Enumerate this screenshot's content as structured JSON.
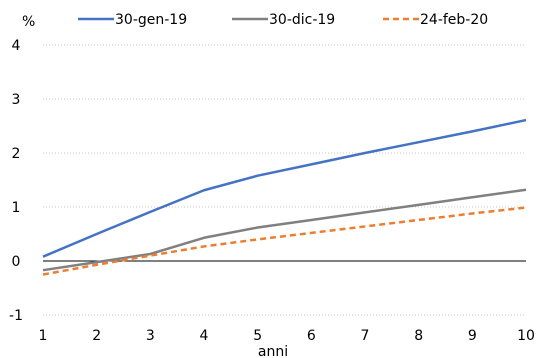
{
  "chart_data": {
    "type": "line",
    "ylabel": "%",
    "xlabel": "anni",
    "x": [
      1,
      2,
      3,
      4,
      5,
      6,
      7,
      8,
      9,
      10
    ],
    "ylim": [
      -1,
      4
    ],
    "xlim": [
      1,
      10
    ],
    "y_ticks": [
      "-1",
      "0",
      "1",
      "2",
      "3",
      "4"
    ],
    "x_ticks": [
      "1",
      "2",
      "3",
      "4",
      "5",
      "6",
      "7",
      "8",
      "9",
      "10"
    ],
    "grid": "horizontal dotted",
    "legend": "top",
    "series": [
      {
        "name": "30-gen-19",
        "color": "#4472C4",
        "dash": "solid",
        "values": [
          0.08,
          0.5,
          0.91,
          1.31,
          1.58,
          1.79,
          2.0,
          2.2,
          2.4,
          2.61
        ]
      },
      {
        "name": "30-dic-19",
        "color": "#808080",
        "dash": "solid",
        "values": [
          -0.17,
          -0.02,
          0.13,
          0.43,
          0.62,
          0.76,
          0.9,
          1.04,
          1.18,
          1.32
        ]
      },
      {
        "name": "24-feb-20",
        "color": "#ED7D31",
        "dash": "dashed",
        "values": [
          -0.25,
          -0.07,
          0.1,
          0.27,
          0.4,
          0.52,
          0.64,
          0.76,
          0.88,
          0.99
        ]
      }
    ]
  }
}
